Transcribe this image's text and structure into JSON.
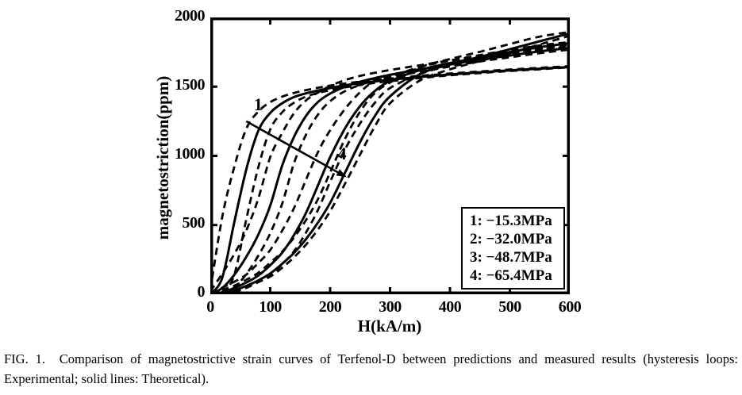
{
  "colors": {
    "ink": "#000000",
    "background": "#ffffff"
  },
  "caption": {
    "text": "FIG. 1.  Comparison of magnetostrictive strain curves of Terfenol-D between predictions and measured results (hysteresis loops: Experimental; solid lines: Theoretical)."
  },
  "chart_data": {
    "type": "line",
    "title": "",
    "xlabel": "H(kA/m)",
    "ylabel": "magnetostriction(ppm)",
    "xlim": [
      0,
      600
    ],
    "ylim": [
      0,
      2000
    ],
    "xticks": [
      0,
      100,
      200,
      300,
      400,
      500,
      600
    ],
    "yticks": [
      0,
      500,
      1000,
      1500,
      2000
    ],
    "grid": false,
    "frame": "box-with-inward-ticks",
    "legend": {
      "position": "inside-bottom-right",
      "items": [
        "1: −15.3MPa",
        "2: −32.0MPa",
        "3: −48.7MPa",
        "4: −65.4MPa"
      ]
    },
    "annotation_arrow": {
      "from_label": "1",
      "to_label": "4",
      "start_xy": [
        60,
        1250
      ],
      "end_xy": [
        228,
        845
      ],
      "label1_xy": [
        80,
        1330
      ],
      "label4_xy": [
        220,
        975
      ]
    },
    "x": [
      0,
      20,
      40,
      60,
      80,
      100,
      120,
      140,
      160,
      180,
      200,
      225,
      250,
      275,
      300,
      350,
      400,
      450,
      500,
      550,
      600
    ],
    "series": [
      {
        "id": "E1-descending",
        "name": "Experimental loop 1 (−15.3MPa) descending",
        "line": "dashed",
        "values": [
          30,
          560,
          920,
          1195,
          1320,
          1388,
          1428,
          1455,
          1475,
          1492,
          1508,
          1523,
          1536,
          1548,
          1558,
          1578,
          1595,
          1610,
          1624,
          1636,
          1648
        ]
      },
      {
        "id": "E1-ascending",
        "name": "Experimental loop 1 (−15.3MPa) ascending",
        "line": "dashed",
        "values": [
          0,
          10,
          140,
          540,
          915,
          1190,
          1315,
          1385,
          1428,
          1455,
          1474,
          1495,
          1512,
          1527,
          1540,
          1562,
          1582,
          1598,
          1613,
          1626,
          1640
        ]
      },
      {
        "id": "E2-descending",
        "name": "Experimental loop 2 (−32.0MPa) descending",
        "line": "dashed",
        "values": [
          20,
          150,
          290,
          460,
          690,
          990,
          1165,
          1310,
          1402,
          1458,
          1505,
          1548,
          1578,
          1600,
          1620,
          1655,
          1690,
          1720,
          1748,
          1770,
          1788
        ]
      },
      {
        "id": "E2-ascending",
        "name": "Experimental loop 2 (−32.0MPa) ascending",
        "line": "dashed",
        "values": [
          0,
          0,
          48,
          145,
          278,
          440,
          655,
          950,
          1155,
          1300,
          1395,
          1468,
          1512,
          1545,
          1568,
          1608,
          1645,
          1682,
          1712,
          1742,
          1768
        ]
      },
      {
        "id": "E3-descending",
        "name": "Experimental loop 3 (−48.7MPa) descending",
        "line": "dashed",
        "values": [
          10,
          48,
          90,
          142,
          225,
          320,
          460,
          625,
          830,
          1030,
          1185,
          1340,
          1460,
          1545,
          1572,
          1642,
          1688,
          1728,
          1765,
          1798,
          1822
        ]
      },
      {
        "id": "E3-ascending",
        "name": "Experimental loop 3 (−48.7MPa) ascending",
        "line": "dashed",
        "values": [
          0,
          0,
          16,
          46,
          88,
          138,
          218,
          312,
          448,
          612,
          812,
          1048,
          1235,
          1385,
          1490,
          1592,
          1652,
          1696,
          1736,
          1772,
          1802
        ]
      },
      {
        "id": "E4-descending",
        "name": "Experimental loop 4 (−65.4MPa) descending",
        "line": "dashed",
        "values": [
          8,
          32,
          62,
          105,
          155,
          228,
          308,
          412,
          538,
          690,
          880,
          1125,
          1320,
          1455,
          1530,
          1640,
          1700,
          1752,
          1808,
          1862,
          1895
        ]
      },
      {
        "id": "E4-ascending",
        "name": "Experimental loop 4 (−65.4MPa) ascending",
        "line": "dashed",
        "values": [
          0,
          8,
          26,
          52,
          88,
          128,
          192,
          268,
          360,
          470,
          600,
          800,
          1010,
          1215,
          1380,
          1545,
          1625,
          1685,
          1742,
          1805,
          1868
        ]
      },
      {
        "id": "T1",
        "name": "Theoretical 1 (−15.3MPa)",
        "line": "solid",
        "values": [
          0,
          120,
          520,
          900,
          1180,
          1310,
          1380,
          1425,
          1452,
          1472,
          1490,
          1510,
          1525,
          1538,
          1550,
          1570,
          1588,
          1604,
          1618,
          1630,
          1642
        ]
      },
      {
        "id": "T2",
        "name": "Theoretical 2 (−32.0MPa)",
        "line": "solid",
        "values": [
          0,
          45,
          140,
          270,
          430,
          640,
          930,
          1140,
          1290,
          1390,
          1450,
          1500,
          1535,
          1562,
          1585,
          1625,
          1660,
          1695,
          1725,
          1755,
          1780
        ]
      },
      {
        "id": "T3",
        "name": "Theoretical 3 (−48.7MPa)",
        "line": "solid",
        "values": [
          0,
          15,
          45,
          85,
          135,
          210,
          300,
          430,
          590,
          790,
          990,
          1200,
          1360,
          1470,
          1540,
          1620,
          1670,
          1710,
          1750,
          1785,
          1815
        ]
      },
      {
        "id": "T4",
        "name": "Theoretical 4 (−65.4MPa)",
        "line": "solid",
        "values": [
          0,
          10,
          30,
          60,
          100,
          150,
          220,
          300,
          400,
          520,
          660,
          880,
          1100,
          1290,
          1430,
          1590,
          1660,
          1715,
          1770,
          1828,
          1885
        ]
      }
    ]
  }
}
